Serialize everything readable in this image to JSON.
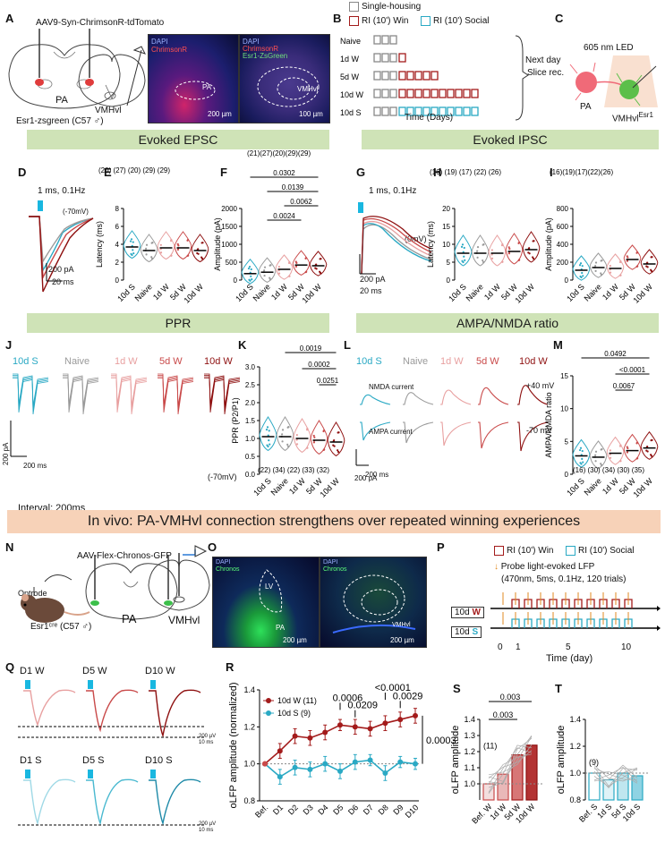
{
  "colors": {
    "social": "#2aa9c4",
    "naive": "#9a9a9a",
    "w1": "#e8a0a0",
    "w5": "#c94a4a",
    "w10": "#8e1010",
    "housing": "#888888",
    "banner": "#cfe3b7",
    "banner_orange": "#f7d2b8",
    "laser": "#19b7e0"
  },
  "panels": {
    "A": {
      "letter": "A",
      "construct": "AAV9-Syn-ChrimsonR-tdTomato",
      "pa": "PA",
      "vmhvl": "VMHvl",
      "mouse": "Esr1-zsgreen (C57 ♂)",
      "img1_dapi": "DAPI",
      "img1_chr": "ChrimsonR",
      "img1_pa": "PA",
      "img1_scale": "200 µm",
      "img2_dapi": "DAPI",
      "img2_chr": "ChrimsonR",
      "img2_esr": "Esr1-ZsGreen",
      "img2_vmh": "VMHvl",
      "img2_scale": "100 µm"
    },
    "B": {
      "letter": "B",
      "legend_housing": "Single-housing",
      "legend_win": "RI (10') Win",
      "legend_social": "RI (10') Social",
      "rows": [
        "Naive",
        "1d W",
        "5d W",
        "10d W",
        "10d S"
      ],
      "next_day": "Next day",
      "slice": "Slice rec.",
      "time": "Time (Days)"
    },
    "C": {
      "letter": "C",
      "led": "605 nm LED",
      "pa": "PA",
      "vmhvl": "VMHvl",
      "sup": "Esr1"
    },
    "D": {
      "letter": "D",
      "stim": "1 ms, 0.1Hz",
      "hold": "(-70mV)",
      "scale_y": "200 pA",
      "scale_x": "20 ms"
    },
    "E": {
      "letter": "E",
      "ylabel": "Latency (ms)",
      "n": "(20) (27) (20) (29) (29)",
      "yticks": [
        "0",
        "2",
        "4",
        "6",
        "8"
      ]
    },
    "F": {
      "letter": "F",
      "ylabel": "Amplitude (pA)",
      "n": "(21)(27)(20)(29)(29)",
      "yticks": [
        "0",
        "500",
        "1000",
        "1500",
        "2000"
      ],
      "p": [
        "0.0302",
        "0.0139",
        "0.0062",
        "0.0024"
      ]
    },
    "G": {
      "letter": "G",
      "stim": "1 ms, 0.1Hz",
      "hold": "(0mV)",
      "scale_y": "200 pA",
      "scale_x": "20 ms"
    },
    "H": {
      "letter": "H",
      "ylabel": "Latency (ms)",
      "n": "(16) (19) (17) (22) (26)",
      "yticks": [
        "0",
        "5",
        "10",
        "15",
        "20"
      ]
    },
    "I": {
      "letter": "I",
      "ylabel": "Amplitude (pA)",
      "n": "(16)(19)(17)(22)(26)",
      "yticks": [
        "0",
        "200",
        "400",
        "600",
        "800"
      ]
    },
    "J": {
      "letter": "J",
      "labels": [
        "10d S",
        "Naive",
        "1d W",
        "5d W",
        "10d W"
      ],
      "scale_y": "200 pA",
      "scale_x": "200 ms",
      "interval": "Interval: 200ms",
      "hold": "(-70mV)"
    },
    "K": {
      "letter": "K",
      "ylabel": "PPR (P2/P1)",
      "n": "(22) (34) (22) (33) (32)",
      "yticks": [
        "0.0",
        "0.5",
        "1.0",
        "1.5",
        "2.0",
        "2.5",
        "3.0"
      ],
      "p": [
        "0.0019",
        "0.0002",
        "0.0251"
      ]
    },
    "L": {
      "letter": "L",
      "labels": [
        "10d S",
        "Naive",
        "1d W",
        "5d W",
        "10d W"
      ],
      "nmda": "NMDA current",
      "ampa": "AMPA current",
      "pos": "+40 mV",
      "neg": "-70 mV",
      "scale_y": "200 pA",
      "scale_x": "200 ms"
    },
    "M": {
      "letter": "M",
      "ylabel": "AMPA/NMDA ratio",
      "n": "(16) (30) (34) (30) (35)",
      "yticks": [
        "0",
        "5",
        "10",
        "15"
      ],
      "p": [
        "0.0492",
        "<0.0001",
        "0.0067"
      ]
    },
    "N": {
      "letter": "N",
      "construct": "AAV-Flex-Chronos-GFP",
      "optrode": "Optrode",
      "mouse": "Esr1ᶜʳᵉ (C57 ♂)",
      "pa": "PA",
      "vmhvl": "VMHvl"
    },
    "O": {
      "letter": "O",
      "dapi": "DAPI",
      "chronos": "Chronos",
      "lv": "LV",
      "pa": "PA",
      "scale1": "200 µm",
      "dapi2": "DAPI",
      "chronos2": "Chronos",
      "vmh": "VMHvl",
      "scale2": "200 µm"
    },
    "P": {
      "letter": "P",
      "legend_win": "RI (10') Win",
      "legend_social": "RI (10') Social",
      "probe1": "Probe light-evoked LFP",
      "probe2": "(470nm, 5ms, 0.1Hz, 120 trials)",
      "row_w_prefix": "10d ",
      "row_w_suffix": "W",
      "row_s_prefix": "10d ",
      "row_s_suffix": "S",
      "ticks": [
        "0",
        "1",
        "5",
        "10"
      ],
      "time": "Time (day)"
    },
    "Q": {
      "letter": "Q",
      "top": [
        "D1 W",
        "D5 W",
        "D10 W"
      ],
      "bottom": [
        "D1 S",
        "D5 S",
        "D10 S"
      ],
      "scale_y": "200 µV",
      "scale_x": "10 ms"
    },
    "R": {
      "letter": "R",
      "ylabel": "oLFP amplitude (normalized)",
      "yticks": [
        "0.8",
        "1.0",
        "1.2",
        "1.4"
      ],
      "legend_w": "10d W (11)",
      "legend_s": "10d S (9)",
      "p": [
        "0.0006",
        "0.0209",
        "<0.0001",
        "0.0029",
        "0.0003"
      ]
    },
    "S": {
      "letter": "S",
      "ylabel": "oLFP amplitude",
      "yticks": [
        "1.0",
        "1.1",
        "1.2",
        "1.3",
        "1.4"
      ],
      "n": "(11)",
      "p": [
        "0.003",
        "0.003"
      ]
    },
    "T": {
      "letter": "T",
      "ylabel": "oLFP amplitude",
      "yticks": [
        "0.8",
        "1.0",
        "1.2",
        "1.4"
      ],
      "n": "(9)"
    }
  },
  "banners": {
    "epsc": "Evoked EPSC",
    "ipsc": "Evoked IPSC",
    "ppr": "PPR",
    "ampa": "AMPA/NMDA ratio",
    "invivo": "In vivo: PA-VMHvl connection strengthens over repeated winning experiences"
  },
  "categories_main": [
    "10d S",
    "Naive",
    "1d W",
    "5d W",
    "10d W"
  ],
  "categories_S": [
    "Bef. W",
    "1d W",
    "5d W",
    "10d W"
  ],
  "categories_T": [
    "Bef. S",
    "1d S",
    "5d S",
    "10d S"
  ],
  "categories_R": [
    "Bef.",
    "D1",
    "D2",
    "D3",
    "D4",
    "D5",
    "D6",
    "D7",
    "D8",
    "D9",
    "D10"
  ],
  "chart_data": [
    {
      "panel": "E",
      "type": "violin",
      "categories": [
        "10d S",
        "Naive",
        "1d W",
        "5d W",
        "10d W"
      ],
      "n": [
        20,
        27,
        20,
        29,
        29
      ],
      "medians": [
        3.7,
        3.3,
        3.6,
        3.6,
        3.3
      ],
      "ylabel": "Latency (ms)",
      "ylim": [
        0,
        8
      ]
    },
    {
      "panel": "F",
      "type": "violin",
      "categories": [
        "10d S",
        "Naive",
        "1d W",
        "5d W",
        "10d W"
      ],
      "n": [
        21,
        27,
        20,
        29,
        29
      ],
      "medians": [
        180,
        220,
        300,
        420,
        400
      ],
      "ylabel": "Amplitude (pA)",
      "ylim": [
        0,
        2000
      ]
    },
    {
      "panel": "H",
      "type": "violin",
      "categories": [
        "10d S",
        "Naive",
        "1d W",
        "5d W",
        "10d W"
      ],
      "n": [
        16,
        19,
        17,
        22,
        26
      ],
      "medians": [
        7.5,
        7.5,
        7.5,
        8,
        8.5
      ],
      "ylabel": "Latency (ms)",
      "ylim": [
        0,
        20
      ]
    },
    {
      "panel": "I",
      "type": "violin",
      "categories": [
        "10d S",
        "Naive",
        "1d W",
        "5d W",
        "10d W"
      ],
      "n": [
        16,
        19,
        17,
        22,
        26
      ],
      "medians": [
        110,
        140,
        130,
        230,
        180
      ],
      "ylabel": "Amplitude (pA)",
      "ylim": [
        0,
        800
      ]
    },
    {
      "panel": "K",
      "type": "violin",
      "categories": [
        "10d S",
        "Naive",
        "1d W",
        "5d W",
        "10d W"
      ],
      "n": [
        22,
        34,
        22,
        33,
        32
      ],
      "medians": [
        1.05,
        1.05,
        1.0,
        0.95,
        0.9
      ],
      "ylabel": "PPR (P2/P1)",
      "ylim": [
        0,
        3
      ]
    },
    {
      "panel": "M",
      "type": "violin",
      "categories": [
        "10d S",
        "Naive",
        "1d W",
        "5d W",
        "10d W"
      ],
      "n": [
        16,
        30,
        34,
        30,
        35
      ],
      "medians": [
        2.8,
        2.6,
        3.2,
        3.6,
        4.0
      ],
      "ylabel": "AMPA/NMDA ratio",
      "ylim": [
        0,
        15
      ]
    },
    {
      "panel": "R",
      "type": "line",
      "x": [
        "Bef.",
        "D1",
        "D2",
        "D3",
        "D4",
        "D5",
        "D6",
        "D7",
        "D8",
        "D9",
        "D10"
      ],
      "series": [
        {
          "name": "10d W (11)",
          "values": [
            1.0,
            1.07,
            1.15,
            1.14,
            1.17,
            1.21,
            1.2,
            1.19,
            1.22,
            1.24,
            1.26
          ],
          "err": [
            0,
            0.04,
            0.04,
            0.04,
            0.04,
            0.03,
            0.04,
            0.04,
            0.04,
            0.04,
            0.04
          ]
        },
        {
          "name": "10d S (9)",
          "values": [
            1.0,
            0.93,
            0.98,
            0.97,
            1.0,
            0.96,
            1.01,
            1.02,
            0.95,
            1.01,
            1.0
          ],
          "err": [
            0,
            0.04,
            0.04,
            0.04,
            0.04,
            0.04,
            0.04,
            0.03,
            0.04,
            0.03,
            0.03
          ]
        }
      ],
      "ylabel": "oLFP amplitude (normalized)",
      "ylim": [
        0.8,
        1.4
      ]
    },
    {
      "panel": "S",
      "type": "bar",
      "categories": [
        "Bef. W",
        "1d W",
        "5d W",
        "10d W"
      ],
      "values": [
        1.0,
        1.06,
        1.18,
        1.24
      ],
      "ylabel": "oLFP amplitude",
      "ylim": [
        0.9,
        1.4
      ]
    },
    {
      "panel": "T",
      "type": "bar",
      "categories": [
        "Bef. S",
        "1d S",
        "5d S",
        "10d S"
      ],
      "values": [
        1.0,
        0.95,
        1.0,
        0.98
      ],
      "ylabel": "oLFP amplitude",
      "ylim": [
        0.8,
        1.4
      ]
    }
  ]
}
